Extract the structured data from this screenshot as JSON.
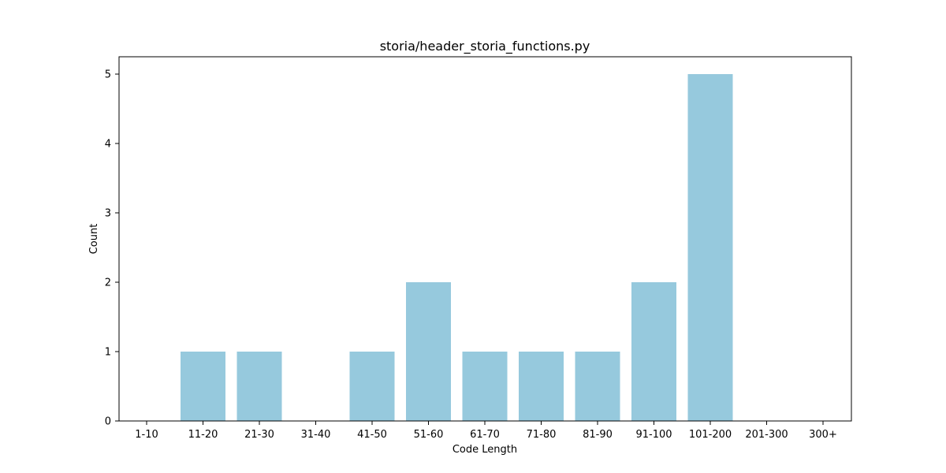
{
  "chart_data": {
    "type": "bar",
    "title": "storia/header_storia_functions.py",
    "xlabel": "Code Length",
    "ylabel": "Count",
    "categories": [
      "1-10",
      "11-20",
      "21-30",
      "31-40",
      "41-50",
      "51-60",
      "61-70",
      "71-80",
      "81-90",
      "91-100",
      "101-200",
      "201-300",
      "300+"
    ],
    "values": [
      0,
      1,
      1,
      0,
      1,
      2,
      1,
      1,
      1,
      2,
      5,
      0,
      0
    ],
    "ylim": [
      0,
      5.25
    ],
    "yticks": [
      0,
      1,
      2,
      3,
      4,
      5
    ],
    "grid": false,
    "legend": "none",
    "bar_color": "#96c9dd"
  }
}
